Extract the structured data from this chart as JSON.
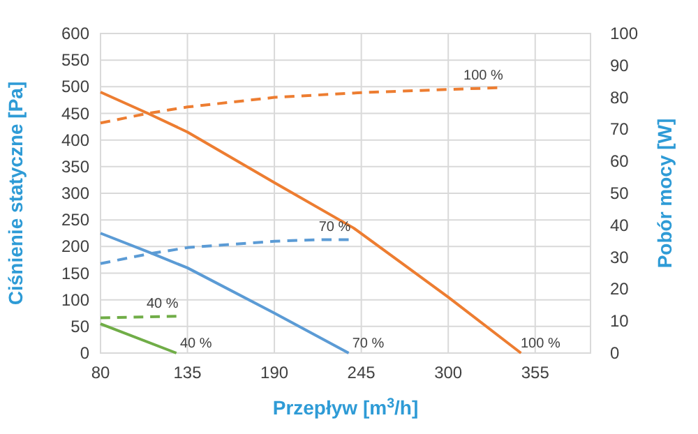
{
  "chart_data": {
    "type": "line",
    "xlabel": "Przepływ [m$^{3}$/h]",
    "ylabel": "Ciśnienie statyczne [Pa]",
    "y2label": "Pobór mocy [W]",
    "xlim": [
      80,
      390
    ],
    "xticks": [
      80,
      135,
      190,
      245,
      300,
      355
    ],
    "ylim": [
      0,
      600
    ],
    "yticks": [
      0,
      50,
      100,
      150,
      200,
      250,
      300,
      350,
      400,
      450,
      500,
      550,
      600
    ],
    "y2lim": [
      0,
      100
    ],
    "y2ticks": [
      0,
      10,
      20,
      30,
      40,
      50,
      60,
      70,
      80,
      90,
      100
    ],
    "grid": true,
    "line_style": "solid",
    "marker": "none",
    "series": [
      {
        "color": "#ed7d31",
        "x": [
          80,
          110,
          135,
          190,
          240,
          270,
          300,
          346
        ],
        "values": [
          490,
          450,
          415,
          320,
          235,
          170,
          105,
          0
        ]
      },
      {
        "color": "#ed7d31",
        "axis": "y2",
        "line_style": "dashed",
        "x": [
          80,
          110,
          135,
          190,
          245,
          300,
          331
        ],
        "values": [
          72,
          75,
          77,
          80,
          81.5,
          82.5,
          83
        ]
      },
      {
        "color": "#5b9bd5",
        "x": [
          80,
          110,
          135,
          190,
          237
        ],
        "values": [
          225,
          190,
          160,
          75,
          0
        ]
      },
      {
        "color": "#5b9bd5",
        "axis": "y2",
        "line_style": "dashed",
        "x": [
          80,
          110,
          135,
          190,
          220,
          237
        ],
        "values": [
          28,
          31,
          33,
          35,
          35.5,
          35.5
        ]
      },
      {
        "color": "#70ad47",
        "x": [
          80,
          128
        ],
        "values": [
          55,
          0
        ]
      },
      {
        "color": "#70ad47",
        "axis": "y2",
        "line_style": "dashed",
        "x": [
          80,
          128
        ],
        "values": [
          11,
          11.5
        ]
      }
    ],
    "annotations": [
      "100 %",
      "100 %",
      "70 %",
      "70 %",
      "40 %",
      "40 %"
    ]
  }
}
